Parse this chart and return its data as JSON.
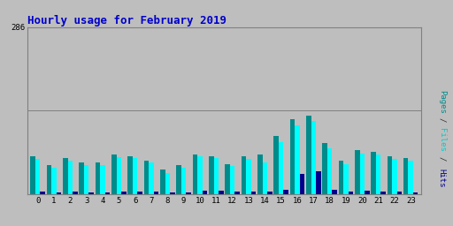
{
  "title": "Hourly usage for February 2019",
  "hours": [
    0,
    1,
    2,
    3,
    4,
    5,
    6,
    7,
    8,
    9,
    10,
    11,
    12,
    13,
    14,
    15,
    16,
    17,
    18,
    19,
    20,
    21,
    22,
    23
  ],
  "pages": [
    65,
    50,
    62,
    55,
    55,
    68,
    65,
    58,
    42,
    50,
    68,
    65,
    52,
    65,
    68,
    100,
    128,
    135,
    88,
    58,
    75,
    72,
    65,
    62
  ],
  "files": [
    60,
    46,
    58,
    50,
    50,
    63,
    62,
    55,
    36,
    46,
    65,
    62,
    48,
    60,
    55,
    90,
    118,
    125,
    78,
    52,
    70,
    68,
    60,
    58
  ],
  "hits": [
    5,
    4,
    5,
    4,
    4,
    5,
    5,
    5,
    4,
    4,
    6,
    6,
    5,
    5,
    5,
    8,
    35,
    40,
    8,
    5,
    6,
    5,
    5,
    4
  ],
  "ylim": [
    0,
    286
  ],
  "color_pages": "#008B8B",
  "color_files": "#00FFFF",
  "color_hits": "#00008B",
  "bg_color": "#BEBEBE",
  "plot_bg": "#BEBEBE",
  "border_color": "#808080",
  "title_color": "#0000CC",
  "bar_width": 0.3,
  "figsize": [
    5.12,
    2.56
  ],
  "dpi": 100
}
